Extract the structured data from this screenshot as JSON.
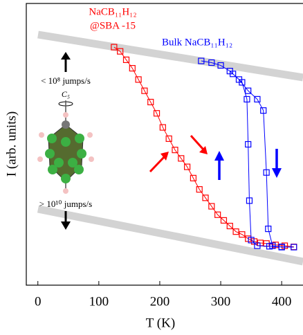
{
  "chart_data": {
    "type": "scatter",
    "x_label": "T (K)",
    "y_label": "I (arb. units)",
    "xlim": [
      -19,
      435
    ],
    "xticks": [
      0,
      100,
      200,
      300,
      400
    ],
    "ylim": [
      0,
      100
    ],
    "annotations": [
      "NaCB₁₁H₁₂",
      "@SBA -15",
      "Bulk NaCB₁₁H₁₂",
      "< 10⁸ jumps/s",
      "C₅",
      "> 10¹⁰ jumps/s"
    ],
    "series": [
      {
        "name": "NaCB₁₁H₁₂ @SBA -15",
        "color": "#ff0000",
        "x": [
          125,
          135,
          145,
          155,
          165,
          175,
          185,
          195,
          205,
          215,
          225,
          235,
          245,
          255,
          265,
          275,
          285,
          295,
          305,
          315,
          325,
          335,
          345,
          355,
          365,
          375,
          390,
          405,
          420
        ],
        "values": [
          84.5,
          83,
          80,
          77,
          73,
          69,
          65,
          61,
          56,
          52,
          48,
          45,
          42,
          38,
          34,
          31,
          28,
          25,
          23,
          21,
          19,
          18,
          16.5,
          15.5,
          15,
          14.8,
          14.3,
          14,
          13.6
        ]
      },
      {
        "name": "Bulk NaCB₁₁H₁₂",
        "color": "#0000ff",
        "x": [
          268,
          285,
          300,
          315,
          330,
          345,
          360,
          370,
          375,
          378,
          385,
          400,
          420,
          400,
          380,
          360,
          350,
          347,
          345,
          343,
          335,
          320
        ],
        "values": [
          79.6,
          79,
          78,
          76,
          73,
          69,
          66,
          62,
          40,
          20,
          14,
          13.5,
          13.5,
          13.6,
          13.8,
          14,
          16,
          30,
          50,
          66,
          72,
          75
        ]
      }
    ]
  }
}
